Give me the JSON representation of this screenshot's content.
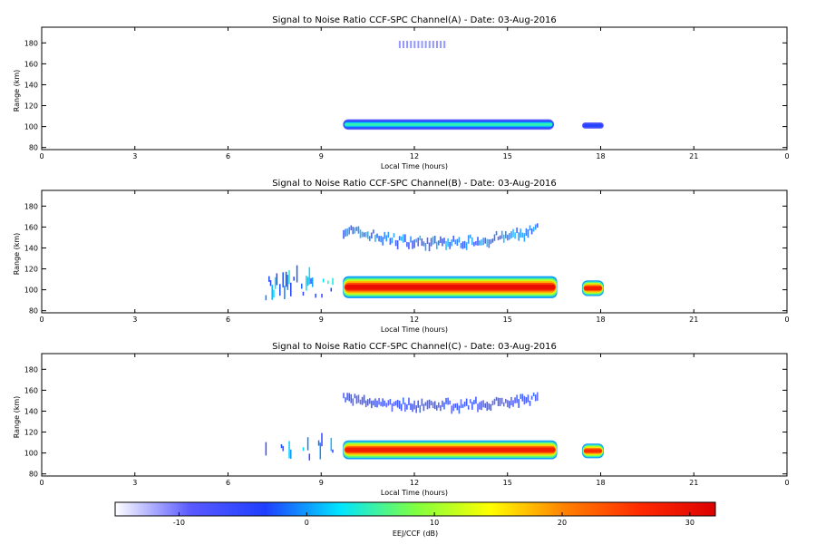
{
  "chart_data": [
    {
      "type": "heatmap",
      "title": "Signal to Noise Ratio CCF-SPC Channel(A) - Date: 03-Aug-2016",
      "xlabel": "Local Time (hours)",
      "ylabel": "Range (km)",
      "xlim": [
        0,
        24
      ],
      "ylim": [
        78,
        195
      ],
      "xticks": [
        "0",
        "3",
        "6",
        "9",
        "12",
        "15",
        "18",
        "21",
        "0"
      ],
      "yticks": [
        "80",
        "100",
        "120",
        "140",
        "160",
        "180"
      ],
      "bands": [
        {
          "x": [
            9.7,
            16.5
          ],
          "y": [
            97,
            107
          ],
          "peak_db": 5
        },
        {
          "x": [
            17.4,
            18.1
          ],
          "y": [
            98,
            104
          ],
          "peak_db": -3
        }
      ],
      "faint_echo": {
        "x": [
          11.5,
          13.0
        ],
        "y": [
          175,
          182
        ],
        "db": -8
      }
    },
    {
      "type": "heatmap",
      "title": "Signal to Noise Ratio CCF-SPC Channel(B) - Date: 03-Aug-2016",
      "xlabel": "Local Time (hours)",
      "ylabel": "Range (km)",
      "xlim": [
        0,
        24
      ],
      "ylim": [
        78,
        195
      ],
      "xticks": [
        "0",
        "3",
        "6",
        "9",
        "12",
        "15",
        "18",
        "21",
        "0"
      ],
      "yticks": [
        "80",
        "100",
        "120",
        "140",
        "160",
        "180"
      ],
      "bands": [
        {
          "x": [
            9.7,
            16.6
          ],
          "y": [
            92,
            113
          ],
          "peak_db": 30
        },
        {
          "x": [
            17.4,
            18.1
          ],
          "y": [
            94,
            109
          ],
          "peak_db": 28
        }
      ],
      "scatter": {
        "x": [
          7.2,
          9.4
        ],
        "y": [
          90,
          118
        ],
        "db": 0
      },
      "arc": {
        "x": [
          9.7,
          16.0
        ],
        "y_edge": 158,
        "y_mid": 145,
        "db": -5
      }
    },
    {
      "type": "heatmap",
      "title": "Signal to Noise Ratio CCF-SPC Channel(C) - Date: 03-Aug-2016",
      "xlabel": "Local Time (hours)",
      "ylabel": "Range (km)",
      "xlim": [
        0,
        24
      ],
      "ylim": [
        78,
        195
      ],
      "xticks": [
        "0",
        "3",
        "6",
        "9",
        "12",
        "15",
        "18",
        "21",
        "0"
      ],
      "yticks": [
        "80",
        "100",
        "120",
        "140",
        "160",
        "180"
      ],
      "bands": [
        {
          "x": [
            9.7,
            16.6
          ],
          "y": [
            94,
            112
          ],
          "peak_db": 28
        },
        {
          "x": [
            17.4,
            18.1
          ],
          "y": [
            95,
            109
          ],
          "peak_db": 26
        }
      ],
      "scatter": {
        "x": [
          7.2,
          9.4
        ],
        "y": [
          92,
          114
        ],
        "db": -2
      },
      "arc": {
        "x": [
          9.7,
          16.0
        ],
        "y_edge": 152,
        "y_mid": 146,
        "db": -8
      }
    }
  ],
  "colorbar": {
    "label": "EEJ/CCF (dB)",
    "range": [
      -15,
      32
    ],
    "ticks": [
      "-10",
      "0",
      "10",
      "20",
      "30"
    ],
    "tick_values": [
      -10,
      0,
      10,
      20,
      30
    ],
    "colors": [
      "#ffffff",
      "#5a5aff",
      "#1f3fff",
      "#00e5ff",
      "#7fff40",
      "#ffff00",
      "#ff8000",
      "#ff2a00",
      "#dd0000"
    ]
  }
}
